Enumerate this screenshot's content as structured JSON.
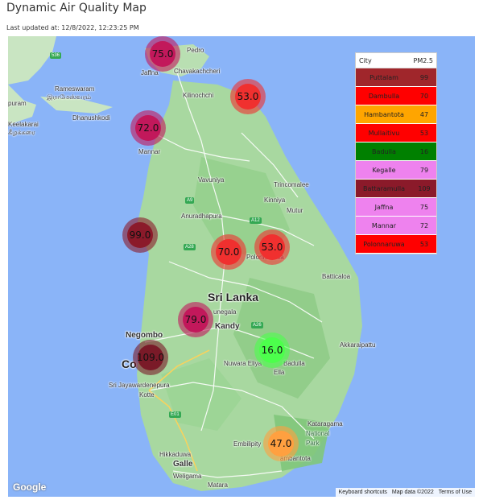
{
  "header": {
    "title": "Dynamic Air Quality Map",
    "last_updated": "Last updated at: 12/8/2022, 12:23:25 PM"
  },
  "legend": {
    "col_city": "City",
    "col_value": "PM2.5",
    "rows": [
      {
        "city": "Puttalam",
        "value": "99",
        "color": "#a0262b"
      },
      {
        "city": "Dambulla",
        "value": "70",
        "color": "#ff0000"
      },
      {
        "city": "Hambantota",
        "value": "47",
        "color": "#ffa500"
      },
      {
        "city": "Mullaitivu",
        "value": "53",
        "color": "#ff0000"
      },
      {
        "city": "Badulla",
        "value": "16",
        "color": "#008000"
      },
      {
        "city": "Kegalle",
        "value": "79",
        "color": "#ee82ee"
      },
      {
        "city": "Battaramulla",
        "value": "109",
        "color": "#8b1a2a"
      },
      {
        "city": "Jaffna",
        "value": "75",
        "color": "#ee82ee"
      },
      {
        "city": "Mannar",
        "value": "72",
        "color": "#ee82ee"
      },
      {
        "city": "Polonnaruwa",
        "value": "53",
        "color": "#ff0000"
      }
    ]
  },
  "markers": [
    {
      "city": "Jaffna",
      "label": "75.0",
      "color": "#c2185b"
    },
    {
      "city": "Mullaitivu",
      "label": "53.0",
      "color": "#f0302f"
    },
    {
      "city": "Mannar",
      "label": "72.0",
      "color": "#c2185b"
    },
    {
      "city": "Puttalam",
      "label": "99.0",
      "color": "#8b1a2a"
    },
    {
      "city": "Dambulla",
      "label": "70.0",
      "color": "#f0302f"
    },
    {
      "city": "Polonnaruwa",
      "label": "53.0",
      "color": "#f0302f"
    },
    {
      "city": "Kegalle",
      "label": "79.0",
      "color": "#c2185b"
    },
    {
      "city": "Battaramulla",
      "label": "109.0",
      "color": "#7a1a28"
    },
    {
      "city": "Badulla",
      "label": "16.0",
      "color": "#4cff4c"
    },
    {
      "city": "Hambantota",
      "label": "47.0",
      "color": "#ffa040"
    }
  ],
  "places": {
    "pedro": "Pedro",
    "jaffna": "Jaffna",
    "chavakachcheri": "Chavakachcheri",
    "kilinochchi": "Kilinochchi",
    "rameswaram": "Rameswaram",
    "rameswaram_ta": "இராமேஸ்வரம்",
    "dhanushkodi": "Dhanushkodi",
    "keelakarai": "Keelakarai",
    "keelakarai_ta": "கீழக்கரை",
    "puram": "puram",
    "mannar": "Mannar",
    "vavuniya": "Vavuniya",
    "trincomalee": "Trincomalee",
    "kinniya": "Kinniya",
    "mutur": "Mutur",
    "anuradhapura": "Anuradhapura",
    "polonnaruwa": "Polonnaruwa",
    "batticaloa": "Batticaloa",
    "sri_lanka": "Sri Lanka",
    "kurunegala": "unegala",
    "kandy": "Kandy",
    "negombo": "Negombo",
    "colombo": "Co",
    "sri_jaya": "Sri Jayawardenepura",
    "kotte": "Kotte",
    "nuwara_eliya": "Nuwara Eliya",
    "badulla": "Badulla",
    "ella": "Ella",
    "akkaraipattu": "Akkaraipattu",
    "kataragama": "Kataragama",
    "national_park": "National",
    "park": "Park",
    "embilipitiya": "Embilipity",
    "hambantota": "ambantota",
    "hikkaduwa": "Hikkaduwa",
    "galle": "Galle",
    "weligama": "Weligama",
    "matara": "Matara"
  },
  "footer": {
    "google": "Google",
    "shortcuts": "Keyboard shortcuts",
    "map_data": "Map data ©2022",
    "terms": "Terms of Use"
  },
  "colors": {
    "water": "#8ab4f8",
    "land": "#a8d8a0",
    "land_dark": "#7fc77a",
    "road": "#ffffff",
    "highway": "#fbd25b"
  }
}
